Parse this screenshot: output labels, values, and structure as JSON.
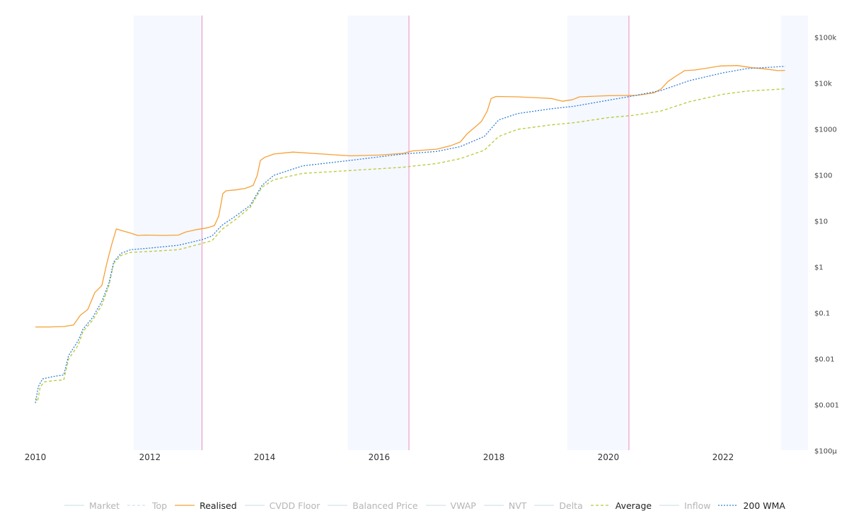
{
  "chart_data": {
    "type": "line",
    "y_scale": "log",
    "ylim": [
      0.0001,
      100000
    ],
    "xlim": [
      "2010-01-01",
      "2023-02-15"
    ],
    "x_ticks": [
      "2010",
      "2012",
      "2014",
      "2016",
      "2018",
      "2020",
      "2022"
    ],
    "y_ticks": [
      {
        "value": 100000,
        "label": "$100k"
      },
      {
        "value": 10000,
        "label": "$10k"
      },
      {
        "value": 1000,
        "label": "$1000"
      },
      {
        "value": 100,
        "label": "$100"
      },
      {
        "value": 10,
        "label": "$10"
      },
      {
        "value": 1,
        "label": "$1"
      },
      {
        "value": 0.1,
        "label": "$0.1"
      },
      {
        "value": 0.01,
        "label": "$0.01"
      },
      {
        "value": 0.001,
        "label": "$0.001"
      },
      {
        "value": 0.0001,
        "label": "$100µ"
      }
    ],
    "shaded_bands": [
      [
        "2011-09-20",
        "2012-11-28"
      ],
      [
        "2015-06-15",
        "2016-07-09"
      ],
      [
        "2019-04-15",
        "2020-05-11"
      ]
    ],
    "vertical_markers": [
      "2012-11-28",
      "2016-07-09",
      "2020-05-11"
    ],
    "right_shade_start": "2023-01-05",
    "series": [
      {
        "name": "Realised",
        "color": "#f7a035",
        "dash": "solid",
        "points": [
          [
            "2010-01-01",
            0.05
          ],
          [
            "2010-04-01",
            0.05
          ],
          [
            "2010-07-01",
            0.051
          ],
          [
            "2010-09-01",
            0.055
          ],
          [
            "2010-10-15",
            0.09
          ],
          [
            "2010-12-01",
            0.12
          ],
          [
            "2011-01-15",
            0.28
          ],
          [
            "2011-03-01",
            0.4
          ],
          [
            "2011-04-01",
            1.2
          ],
          [
            "2011-05-01",
            3.0
          ],
          [
            "2011-06-01",
            6.8
          ],
          [
            "2011-07-01",
            6.3
          ],
          [
            "2011-09-01",
            5.5
          ],
          [
            "2011-10-15",
            4.9
          ],
          [
            "2011-12-01",
            5.0
          ],
          [
            "2012-04-01",
            4.9
          ],
          [
            "2012-07-01",
            5.0
          ],
          [
            "2012-08-15",
            5.8
          ],
          [
            "2012-10-15",
            6.5
          ],
          [
            "2013-01-01",
            7.2
          ],
          [
            "2013-02-15",
            8.0
          ],
          [
            "2013-03-15",
            13
          ],
          [
            "2013-04-10",
            40
          ],
          [
            "2013-05-01",
            46
          ],
          [
            "2013-07-01",
            48
          ],
          [
            "2013-09-01",
            52
          ],
          [
            "2013-10-20",
            60
          ],
          [
            "2013-11-15",
            100
          ],
          [
            "2013-12-05",
            210
          ],
          [
            "2014-01-01",
            245
          ],
          [
            "2014-03-01",
            290
          ],
          [
            "2014-07-01",
            320
          ],
          [
            "2015-01-01",
            290
          ],
          [
            "2015-07-01",
            265
          ],
          [
            "2016-01-01",
            275
          ],
          [
            "2016-06-01",
            300
          ],
          [
            "2016-08-01",
            340
          ],
          [
            "2017-01-01",
            370
          ],
          [
            "2017-04-01",
            440
          ],
          [
            "2017-06-01",
            530
          ],
          [
            "2017-07-15",
            800
          ],
          [
            "2017-09-01",
            1100
          ],
          [
            "2017-10-15",
            1500
          ],
          [
            "2017-11-20",
            2500
          ],
          [
            "2017-12-15",
            4700
          ],
          [
            "2018-01-15",
            5200
          ],
          [
            "2018-06-01",
            5100
          ],
          [
            "2019-01-01",
            4700
          ],
          [
            "2019-03-15",
            4100
          ],
          [
            "2019-05-15",
            4400
          ],
          [
            "2019-07-01",
            5100
          ],
          [
            "2020-01-01",
            5400
          ],
          [
            "2020-07-01",
            5500
          ],
          [
            "2020-10-15",
            6200
          ],
          [
            "2020-12-01",
            7500
          ],
          [
            "2021-01-15",
            11000
          ],
          [
            "2021-03-01",
            14000
          ],
          [
            "2021-05-01",
            19000
          ],
          [
            "2021-07-01",
            19500
          ],
          [
            "2021-09-01",
            21000
          ],
          [
            "2021-12-15",
            24000
          ],
          [
            "2022-04-01",
            24500
          ],
          [
            "2022-07-01",
            22000
          ],
          [
            "2022-10-01",
            20500
          ],
          [
            "2022-12-15",
            19000
          ],
          [
            "2023-01-31",
            19200
          ]
        ]
      },
      {
        "name": "Average",
        "color": "#b8c936",
        "dash": "dashed",
        "points": [
          [
            "2010-01-01",
            0.0014
          ],
          [
            "2010-01-15",
            0.0012
          ],
          [
            "2010-02-01",
            0.0025
          ],
          [
            "2010-03-01",
            0.0032
          ],
          [
            "2010-05-01",
            0.0034
          ],
          [
            "2010-07-01",
            0.0035
          ],
          [
            "2010-08-01",
            0.01
          ],
          [
            "2010-10-01",
            0.02
          ],
          [
            "2010-11-01",
            0.04
          ],
          [
            "2011-01-01",
            0.07
          ],
          [
            "2011-03-01",
            0.15
          ],
          [
            "2011-04-15",
            0.4
          ],
          [
            "2011-05-15",
            1.2
          ],
          [
            "2011-07-01",
            1.8
          ],
          [
            "2011-09-01",
            2.1
          ],
          [
            "2012-01-01",
            2.2
          ],
          [
            "2012-07-01",
            2.4
          ],
          [
            "2012-12-01",
            3.3
          ],
          [
            "2013-02-01",
            3.8
          ],
          [
            "2013-04-01",
            6.5
          ],
          [
            "2013-07-01",
            11
          ],
          [
            "2013-10-01",
            20
          ],
          [
            "2013-12-15",
            55
          ],
          [
            "2014-03-01",
            80
          ],
          [
            "2014-09-01",
            110
          ],
          [
            "2015-06-01",
            125
          ],
          [
            "2016-06-01",
            150
          ],
          [
            "2017-01-01",
            180
          ],
          [
            "2017-06-01",
            230
          ],
          [
            "2017-11-01",
            350
          ],
          [
            "2018-02-01",
            700
          ],
          [
            "2018-06-01",
            1000
          ],
          [
            "2019-01-01",
            1250
          ],
          [
            "2019-06-01",
            1400
          ],
          [
            "2020-01-01",
            1800
          ],
          [
            "2020-06-01",
            2000
          ],
          [
            "2020-12-01",
            2500
          ],
          [
            "2021-06-01",
            4000
          ],
          [
            "2022-01-01",
            5800
          ],
          [
            "2022-06-01",
            6800
          ],
          [
            "2023-01-31",
            7600
          ]
        ]
      },
      {
        "name": "200 WMA",
        "color": "#2f7ed8",
        "dash": "dotted",
        "points": [
          [
            "2010-01-01",
            0.0011
          ],
          [
            "2010-01-20",
            0.0025
          ],
          [
            "2010-02-15",
            0.0037
          ],
          [
            "2010-05-01",
            0.0042
          ],
          [
            "2010-07-01",
            0.0045
          ],
          [
            "2010-08-01",
            0.012
          ],
          [
            "2010-10-01",
            0.025
          ],
          [
            "2010-11-01",
            0.045
          ],
          [
            "2011-01-01",
            0.08
          ],
          [
            "2011-03-01",
            0.18
          ],
          [
            "2011-04-15",
            0.45
          ],
          [
            "2011-05-15",
            1.3
          ],
          [
            "2011-07-01",
            2.0
          ],
          [
            "2011-09-01",
            2.4
          ],
          [
            "2012-01-01",
            2.6
          ],
          [
            "2012-07-01",
            3.0
          ],
          [
            "2012-12-01",
            4.0
          ],
          [
            "2013-02-01",
            4.8
          ],
          [
            "2013-04-01",
            8
          ],
          [
            "2013-07-01",
            13
          ],
          [
            "2013-10-01",
            22
          ],
          [
            "2013-12-15",
            60
          ],
          [
            "2014-03-01",
            100
          ],
          [
            "2014-09-01",
            160
          ],
          [
            "2015-06-01",
            205
          ],
          [
            "2016-06-01",
            290
          ],
          [
            "2017-01-01",
            330
          ],
          [
            "2017-06-01",
            420
          ],
          [
            "2017-11-01",
            700
          ],
          [
            "2018-02-01",
            1600
          ],
          [
            "2018-06-01",
            2200
          ],
          [
            "2019-01-01",
            2800
          ],
          [
            "2019-06-01",
            3200
          ],
          [
            "2020-01-01",
            4300
          ],
          [
            "2020-06-01",
            5300
          ],
          [
            "2020-12-01",
            7000
          ],
          [
            "2021-06-01",
            11500
          ],
          [
            "2022-01-01",
            17000
          ],
          [
            "2022-06-01",
            21000
          ],
          [
            "2023-01-31",
            23500
          ]
        ]
      }
    ],
    "legend": {
      "position": "bottom-center",
      "items": [
        {
          "name": "Market",
          "color": "#7cb5ec",
          "dash": "solid",
          "visible": false
        },
        {
          "name": "Top",
          "color": "#39c9a8",
          "dash": "dashed",
          "visible": false
        },
        {
          "name": "Realised",
          "color": "#f7a035",
          "dash": "solid",
          "visible": true
        },
        {
          "name": "CVDD Floor",
          "color": "#e36fe0",
          "dash": "solid",
          "visible": false
        },
        {
          "name": "Balanced Price",
          "color": "#4ec9c9",
          "dash": "solid",
          "visible": false
        },
        {
          "name": "VWAP",
          "color": "#7cb5ec",
          "dash": "solid",
          "visible": false
        },
        {
          "name": "NVT",
          "color": "#4fd0e0",
          "dash": "solid",
          "visible": false
        },
        {
          "name": "Delta",
          "color": "#8085e9",
          "dash": "solid",
          "visible": false
        },
        {
          "name": "Average",
          "color": "#b8c936",
          "dash": "dashed",
          "visible": true
        },
        {
          "name": "Inflow",
          "color": "#39c9c9",
          "dash": "solid",
          "visible": false
        },
        {
          "name": "200 WMA",
          "color": "#2f7ed8",
          "dash": "dotted",
          "visible": true
        }
      ]
    }
  }
}
